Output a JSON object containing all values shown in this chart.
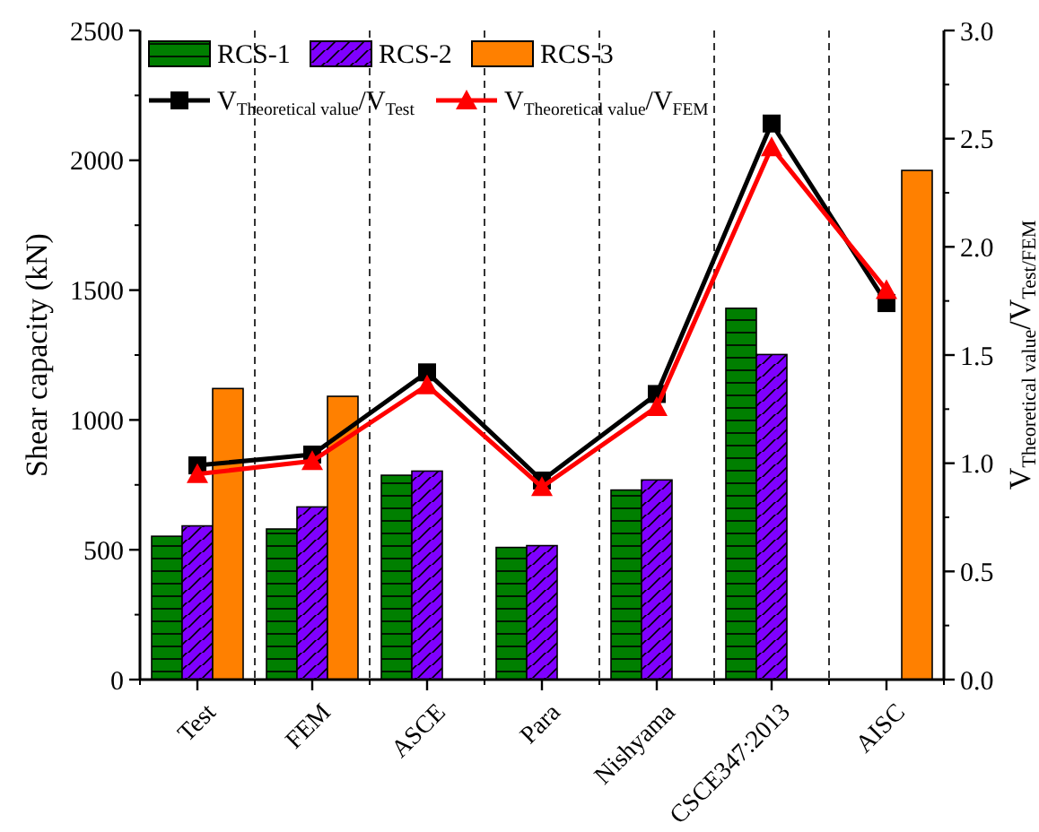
{
  "chart_data": {
    "type": "bar",
    "ylabel": "Shear capacity (kN)",
    "y2label": "V$_{Theoretical value}$/V$_{Test/FEM}$",
    "categories": [
      "Test",
      "FEM",
      "ASCE",
      "Para",
      "Nishyama",
      "CSCE347:2013",
      "AISC"
    ],
    "series": [
      {
        "name": "RCS-1",
        "color": "#007f00",
        "values": [
          552,
          580,
          787,
          509,
          730,
          1430,
          null
        ]
      },
      {
        "name": "RCS-2",
        "color": "#7f00ff",
        "values": [
          592,
          665,
          803,
          516,
          769,
          1252,
          null
        ]
      },
      {
        "name": "RCS-3",
        "color": "#ff8000",
        "values": [
          1121,
          1091,
          null,
          null,
          null,
          null,
          1961
        ]
      },
      {
        "name": "V$_{Theoretical value}$/V$_{Test}$",
        "type": "line",
        "axis": "y2",
        "color": "#000000",
        "marker": "square",
        "values": [
          0.99,
          1.04,
          1.42,
          0.92,
          1.32,
          2.57,
          1.74
        ]
      },
      {
        "name": "V$_{Theoretical value}$/V$_{FEM}$",
        "type": "line",
        "axis": "y2",
        "color": "#ff0000",
        "marker": "triangle",
        "values": [
          0.95,
          1.01,
          1.36,
          0.89,
          1.26,
          2.46,
          1.8
        ]
      }
    ],
    "ylim": [
      0,
      2500
    ],
    "yticks": [
      0,
      500,
      1000,
      1500,
      2000,
      2500
    ],
    "y2lim": [
      0,
      3
    ],
    "y2ticks": [
      {
        "value": 0,
        "label": "0.0"
      },
      {
        "value": 0.5,
        "label": "0.5"
      },
      {
        "value": 1,
        "label": "1.0"
      },
      {
        "value": 1.5,
        "label": "1.5"
      },
      {
        "value": 2,
        "label": "2.0"
      },
      {
        "value": 2.5,
        "label": "2.5"
      },
      {
        "value": 3,
        "label": "3.0"
      }
    ],
    "legend": "top left",
    "grid": false
  }
}
